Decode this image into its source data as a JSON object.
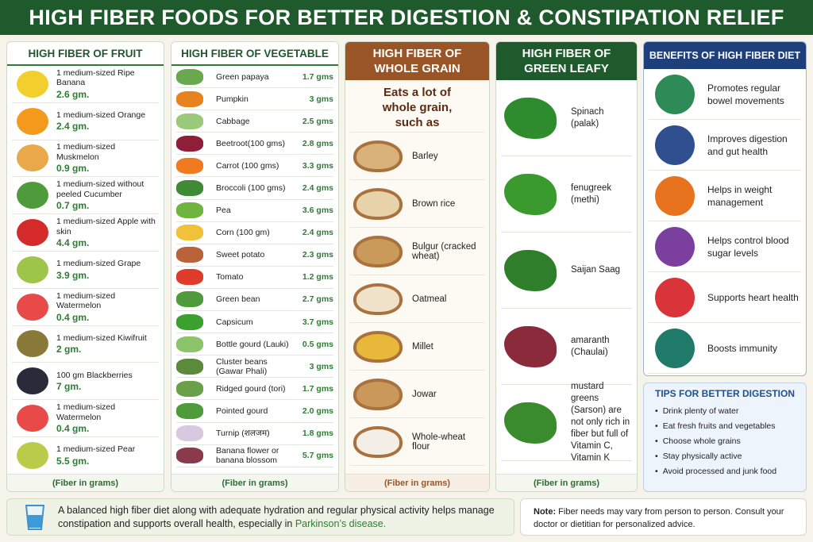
{
  "header": {
    "title": "HIGH FIBER FOODS FOR BETTER DIGESTION & CONSTIPATION RELIEF"
  },
  "fruit": {
    "title": "HIGH FIBER OF FRUIT",
    "items": [
      {
        "name": "1 medium-sized Ripe Banana",
        "fiber": "2.6 gm."
      },
      {
        "name": "1 medium-sized Orange",
        "fiber": "2.4 gm."
      },
      {
        "name": "1 medium-sized Muskmelon",
        "fiber": "0.9 gm."
      },
      {
        "name": "1 medium-sized without peeled Cucumber",
        "fiber": "0.7 gm."
      },
      {
        "name": "1 medium-sized Apple with skin",
        "fiber": "4.4 gm."
      },
      {
        "name": "1 medium-sized Grape",
        "fiber": "3.9 gm."
      },
      {
        "name": "1 medium-sized Watermelon",
        "fiber": "0.4 gm."
      },
      {
        "name": "1 medium-sized Kiwifruit",
        "fiber": "2 gm."
      },
      {
        "name": "100 gm Blackberries",
        "fiber": "7 gm."
      },
      {
        "name": "1 medium-sized Watermelon",
        "fiber": "0.4 gm."
      },
      {
        "name": "1 medium-sized Pear",
        "fiber": "5.5 gm."
      }
    ],
    "footer": "(Fiber in grams)"
  },
  "vegetable": {
    "title": "HIGH FIBER OF VEGETABLE",
    "items": [
      {
        "name": "Green papaya",
        "fiber": "1.7 gms"
      },
      {
        "name": "Pumpkin",
        "fiber": "3 gms"
      },
      {
        "name": "Cabbage",
        "fiber": "2.5 gms"
      },
      {
        "name": "Beetroot(100 gms)",
        "fiber": "2.8 gms"
      },
      {
        "name": "Carrot (100 gms)",
        "fiber": "3.3 gms"
      },
      {
        "name": "Broccoli (100 gms)",
        "fiber": "2.4 gms"
      },
      {
        "name": "Pea",
        "fiber": "3.6 gms"
      },
      {
        "name": "Corn (100 gm)",
        "fiber": "2.4 gms"
      },
      {
        "name": "Sweet potato",
        "fiber": "2.3 gms"
      },
      {
        "name": "Tomato",
        "fiber": "1.2 gms"
      },
      {
        "name": "Green bean",
        "fiber": "2.7 gms"
      },
      {
        "name": "Capsicum",
        "fiber": "3.7 gms"
      },
      {
        "name": "Bottle gourd (Lauki)",
        "fiber": "0.5 gms"
      },
      {
        "name": "Cluster beans (Gawar Phali)",
        "fiber": "3 gms"
      },
      {
        "name": "Ridged gourd (tori)",
        "fiber": "1.7 gms"
      },
      {
        "name": "Pointed gourd",
        "fiber": "2.0 gms"
      },
      {
        "name": "Turnip (शलजम)",
        "fiber": "1.8 gms"
      },
      {
        "name": "Banana flower or banana blossom",
        "fiber": "5.7 gms"
      }
    ],
    "footer": "(Fiber in grams)"
  },
  "whole_grain": {
    "title": "HIGH FIBER OF WHOLE GRAIN",
    "intro": "Eats a lot of whole grain, such as",
    "items": [
      "Barley",
      "Brown rice",
      "Bulgur (cracked wheat)",
      "Oatmeal",
      "Millet",
      "Jowar",
      "Whole-wheat flour"
    ],
    "footer": "(Fiber in grams)"
  },
  "green_leafy": {
    "title": "HIGH FIBER OF GREEN LEAFY",
    "items": [
      "Spinach (palak)",
      "fenugreek (methi)",
      "Saijan Saag",
      "amaranth (Chaulai)",
      "mustard greens (Sarson) are not only rich in fiber but full of Vitamin C, Vitamin K"
    ],
    "footer": "(Fiber in grams)"
  },
  "benefits": {
    "title": "BENEFITS OF HIGH FIBER DIET",
    "items": [
      "Promotes regular bowel movements",
      "Improves digestion and gut health",
      "Helps in weight management",
      "Helps control blood sugar levels",
      "Supports heart health",
      "Boosts immunity"
    ]
  },
  "tips": {
    "title": "TIPS FOR BETTER DIGESTION",
    "items": [
      "Drink plenty of water",
      "Eat fresh fruits and vegetables",
      "Choose whole grains",
      "Stay physically active",
      "Avoid processed and junk food"
    ]
  },
  "summary": {
    "text": "A balanced high fiber diet along with adequate hydration and regular physical activity helps manage constipation and supports overall health, especially in",
    "highlight": "Parkinson’s disease."
  },
  "note": {
    "label": "Note:",
    "text": "Fiber needs may vary from person to person. Consult your doctor or dietitian for personalized advice."
  }
}
